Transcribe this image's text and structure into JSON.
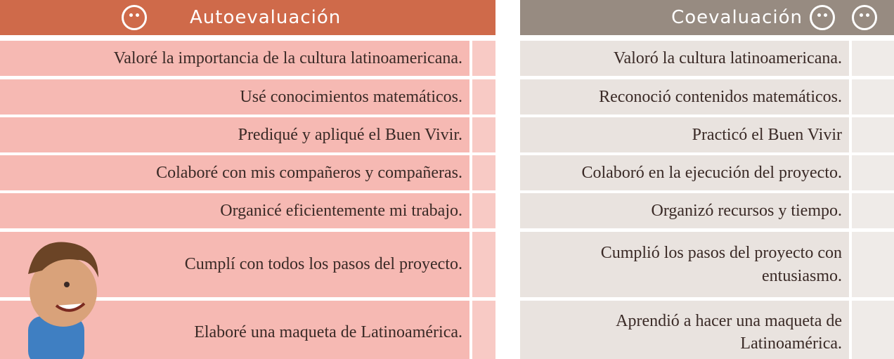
{
  "auto": {
    "title": "Autoevaluación",
    "rows": [
      "Valoré la importancia de la cultura latinoamericana.",
      "Usé conocimientos matemáticos.",
      "Prediqué y apliqué el Buen Vivir.",
      "Colaboré con mis compañeros y compañeras.",
      "Organicé eficientemente mi trabajo.",
      "Cumplí con todos los pasos del proyecto.",
      "Elaboré una maqueta de Latinoamérica."
    ]
  },
  "co": {
    "title": "Coevaluación",
    "rows": [
      "Valoró la cultura latinoamericana.",
      "Reconoció contenidos matemáticos.",
      "Practicó el Buen Vivir",
      "Colaboró en la ejecución del proyecto.",
      "Organizó recursos y tiempo.",
      "Cumplió los pasos del proyecto con entusiasmo.",
      "Aprendió a hacer una maqueta de Latinoamérica."
    ]
  }
}
